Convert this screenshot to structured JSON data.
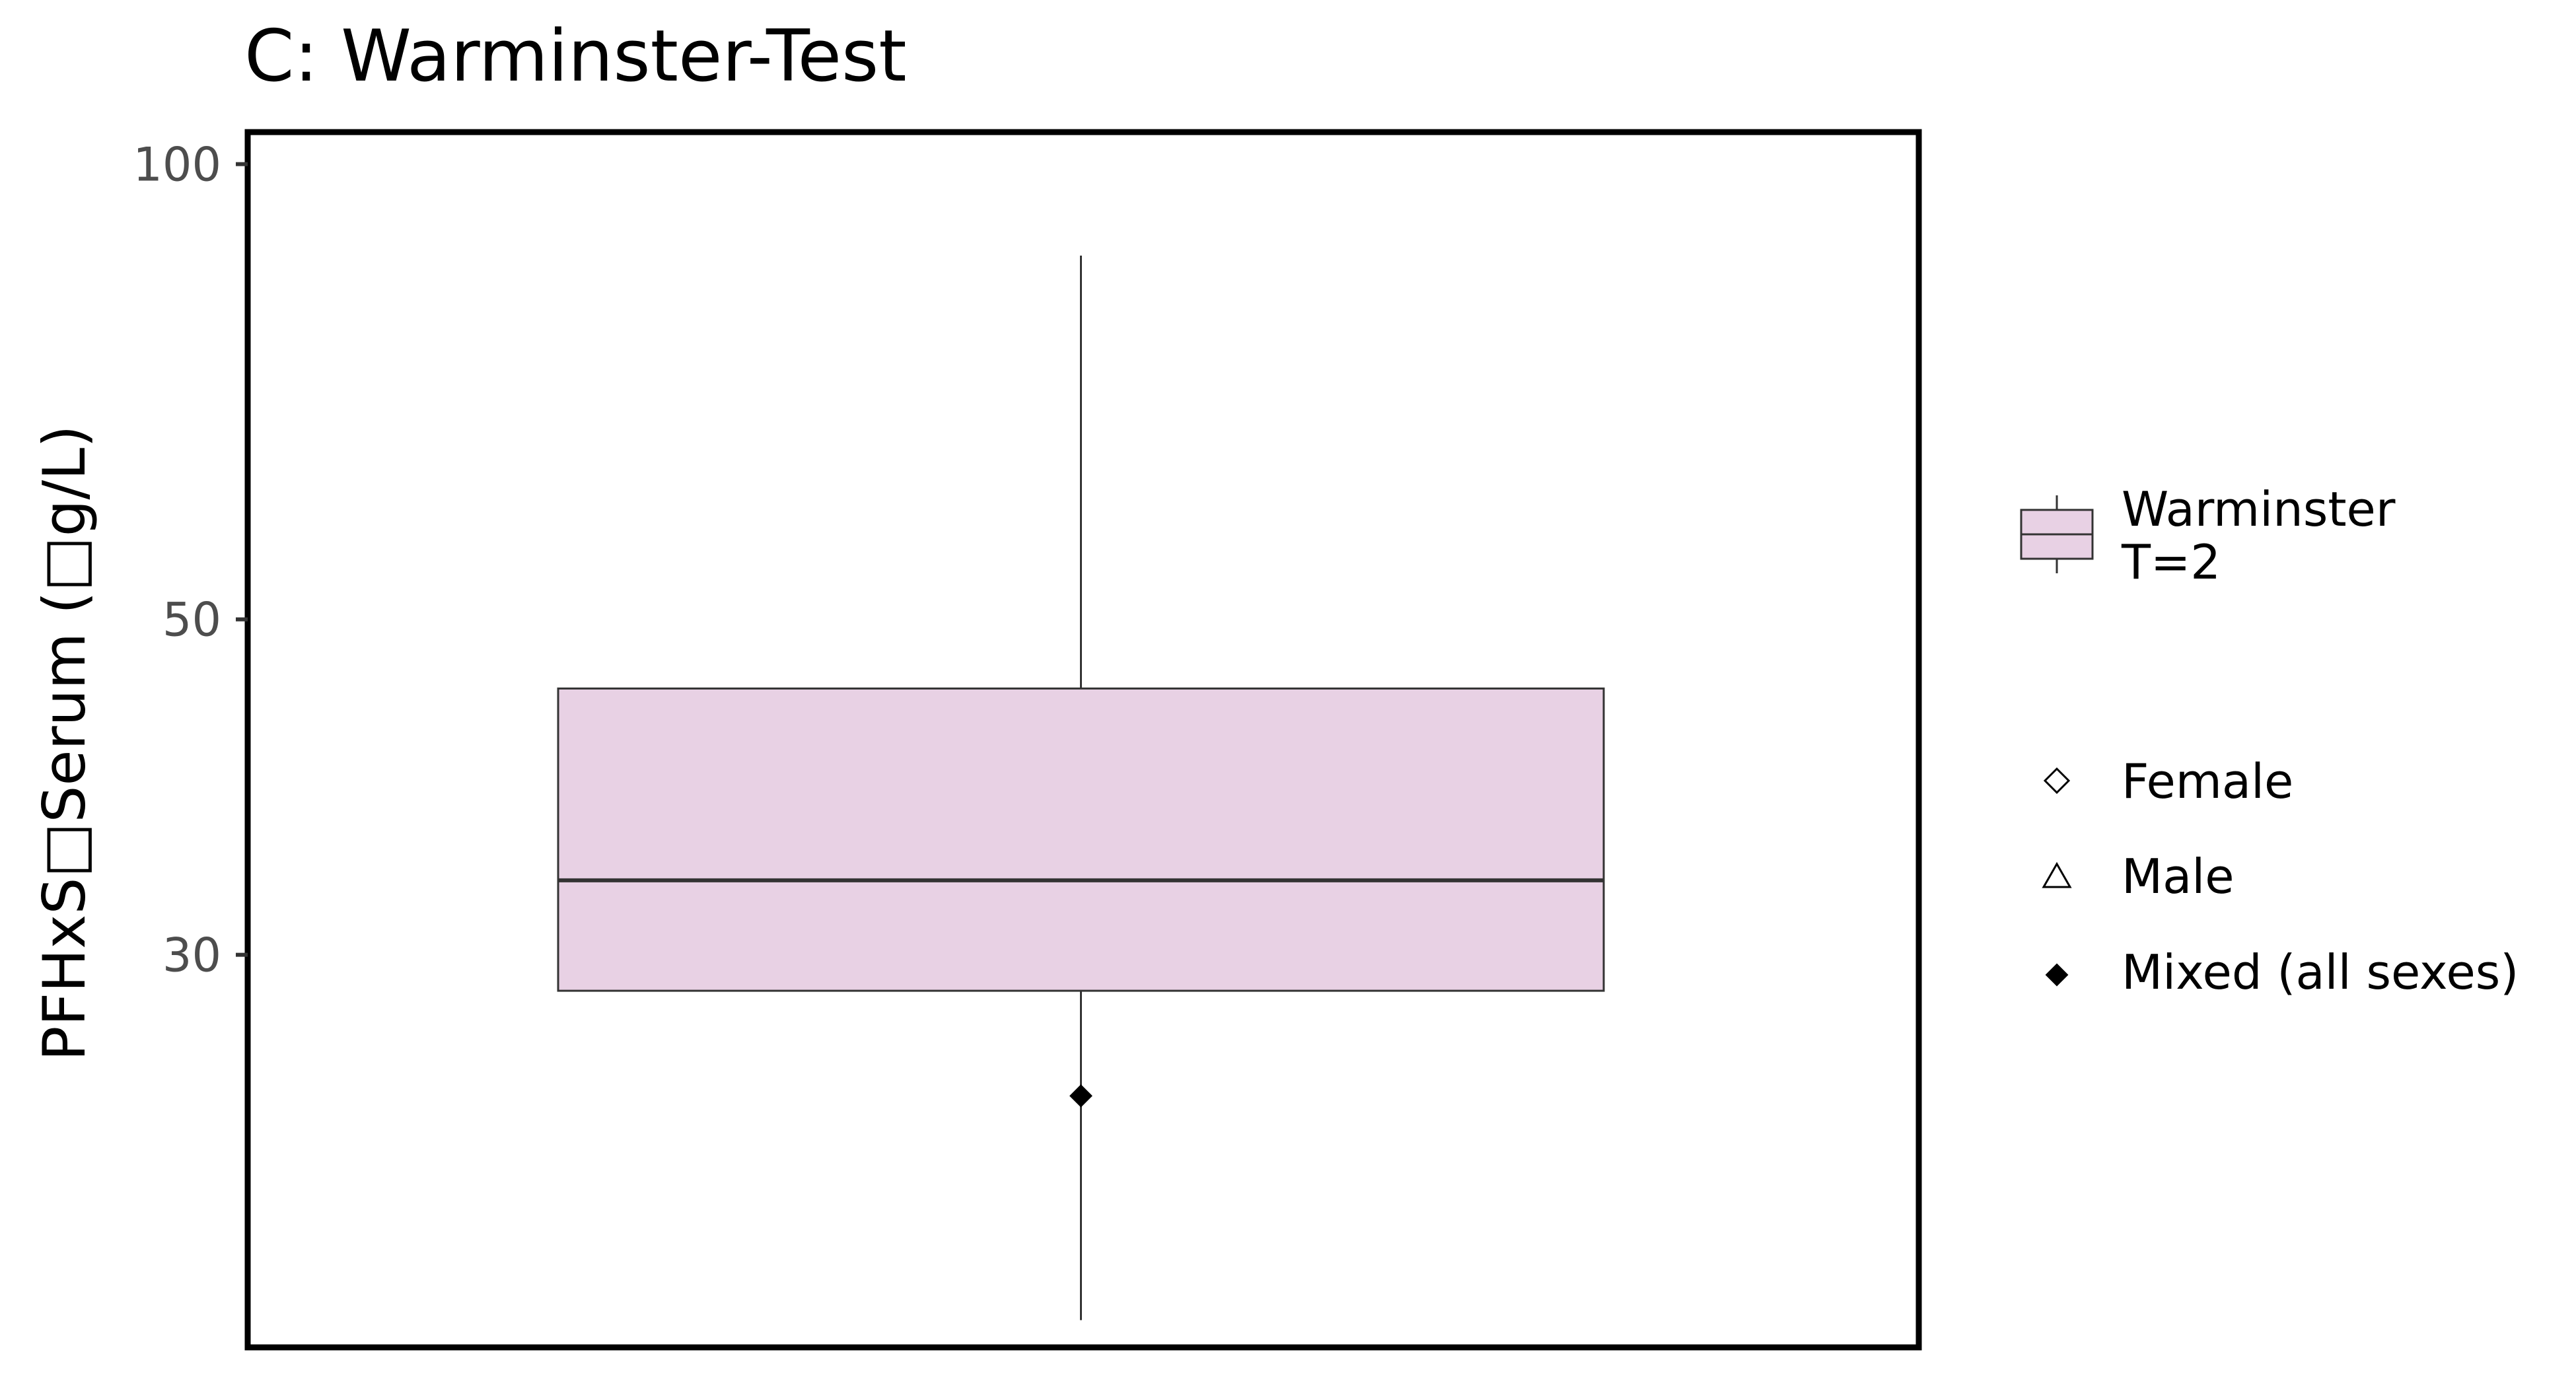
{
  "chart_data": {
    "type": "box",
    "title": "C: Warminster-Test",
    "xlabel": "",
    "ylabel": "PFHxS□Serum (□g/L)",
    "y_scale": "log",
    "ylim": [
      16.5,
      105
    ],
    "y_ticks": [
      {
        "value": 30,
        "label": "30"
      },
      {
        "value": 50,
        "label": "50"
      },
      {
        "value": 100,
        "label": "100"
      }
    ],
    "grid": false,
    "legend_position": "right",
    "series": [
      {
        "name": "Warminster\nT=2",
        "fill_color": "#e8d1e4",
        "whisker_low": 17.2,
        "q1": 28.4,
        "median": 33.6,
        "q3": 45.0,
        "whisker_high": 87.0,
        "points": [
          {
            "value": 24.2,
            "group": "Mixed (all sexes)"
          }
        ]
      }
    ],
    "legend": {
      "box_entry": {
        "label_lines": [
          "Warminster",
          "T=2"
        ],
        "fill_color": "#e8d1e4"
      },
      "shape_entries": [
        {
          "label": "Female",
          "shape": "open-diamond"
        },
        {
          "label": "Male",
          "shape": "open-triangle"
        },
        {
          "label": "Mixed (all sexes)",
          "shape": "filled-diamond"
        }
      ]
    }
  }
}
